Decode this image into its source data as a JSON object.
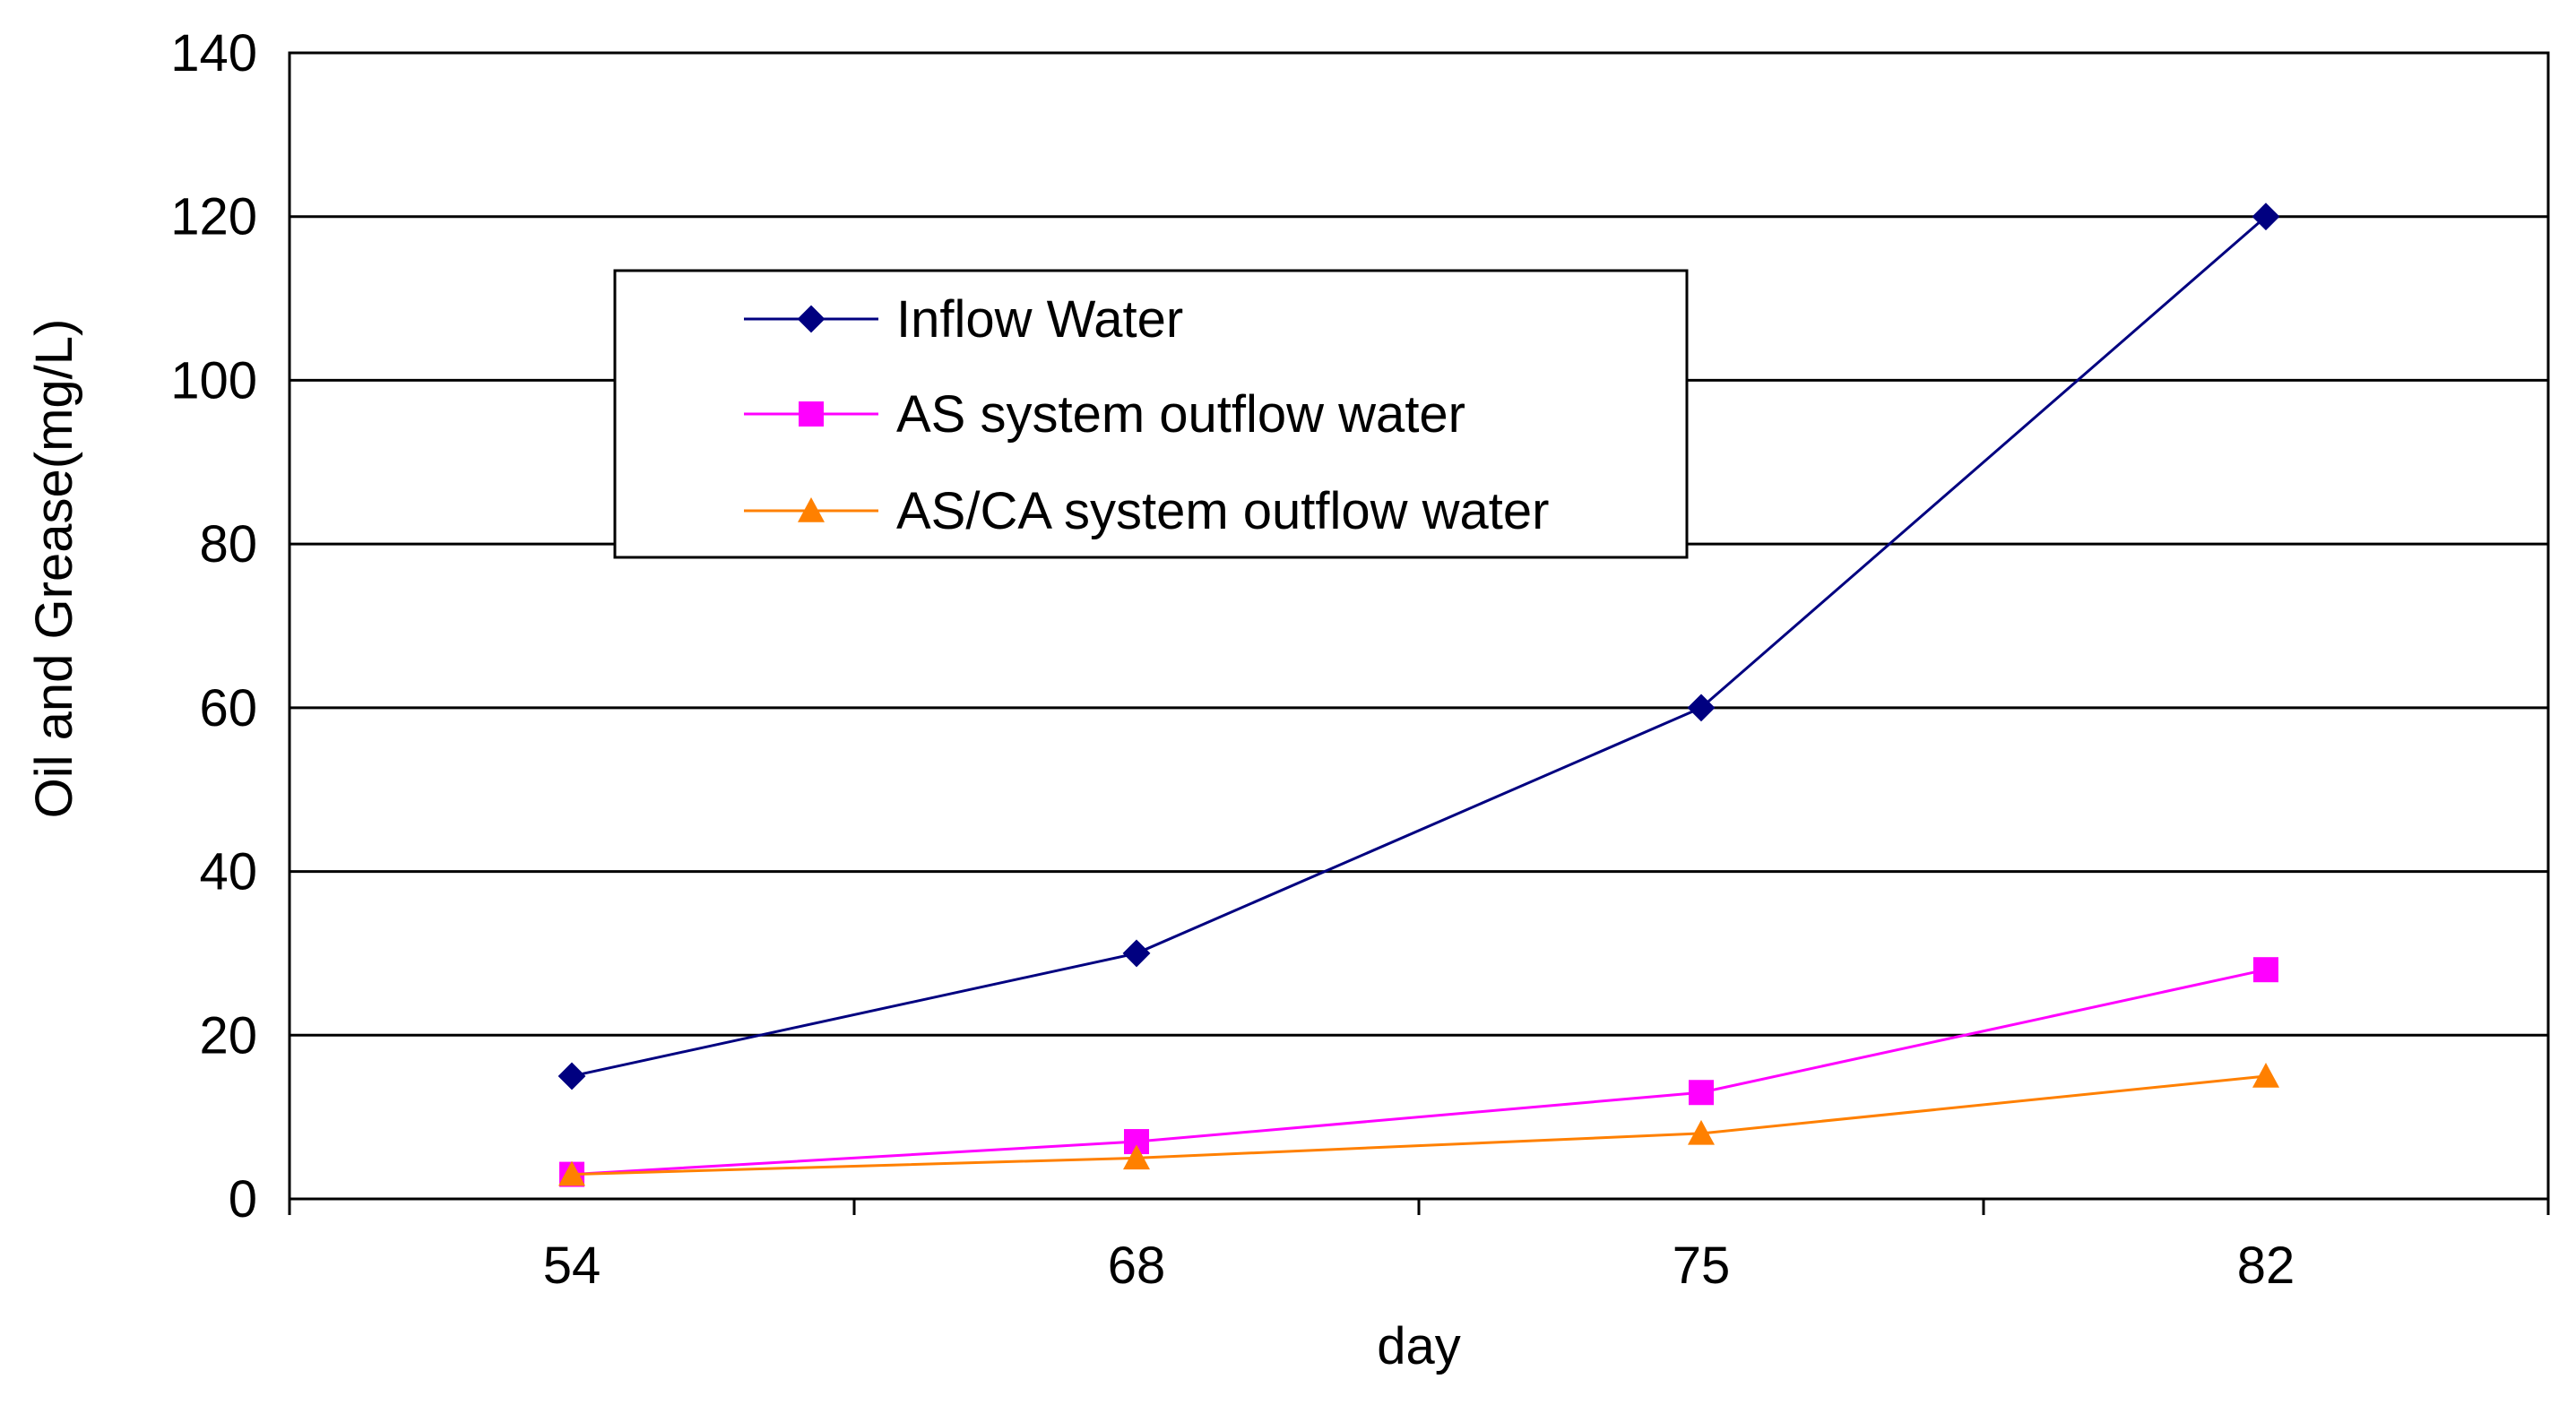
{
  "chart_data": {
    "type": "line",
    "title": "",
    "xlabel": "day",
    "ylabel": "Oil and Grease(mg/L)",
    "categories": [
      "54",
      "68",
      "75",
      "82"
    ],
    "ylim": [
      0,
      140
    ],
    "yticks": [
      "0",
      "20",
      "40",
      "60",
      "80",
      "100",
      "120",
      "140"
    ],
    "grid": "horizontal",
    "legend_position": "upper-left",
    "series": [
      {
        "name": "Inflow Water",
        "color": "#000080",
        "marker": "diamond",
        "values": [
          15,
          30,
          60,
          120
        ]
      },
      {
        "name": "AS system outflow water",
        "color": "#FF00FF",
        "marker": "square",
        "values": [
          3,
          7,
          13,
          28
        ]
      },
      {
        "name": "AS/CA system outflow water",
        "color": "#FF8000",
        "marker": "triangle",
        "values": [
          3,
          5,
          8,
          15
        ]
      }
    ]
  }
}
